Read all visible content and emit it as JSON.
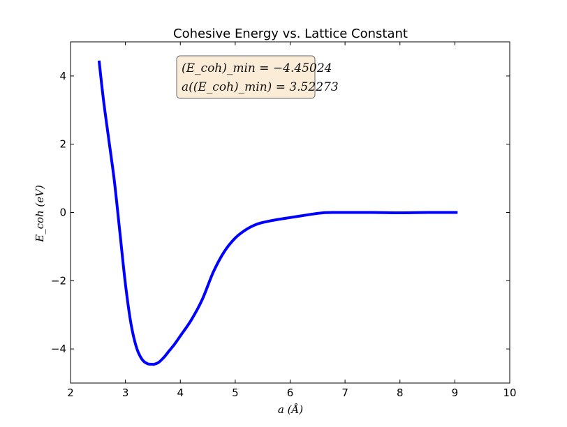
{
  "chart_data": {
    "type": "line",
    "title": "Cohesive Energy vs. Lattice Constant",
    "xlabel": "a (Å)",
    "ylabel": "E_coh (eV)",
    "xlim": [
      2,
      10
    ],
    "ylim": [
      -5,
      5
    ],
    "xticks": [
      "2",
      "3",
      "4",
      "5",
      "6",
      "7",
      "8",
      "9",
      "10"
    ],
    "yticks": [
      "−4",
      "−2",
      "0",
      "2",
      "4"
    ],
    "grid": false,
    "series": [
      {
        "color": "#0000ff",
        "x": [
          2.52,
          2.6,
          2.7,
          2.8,
          2.9,
          3.0,
          3.1,
          3.2,
          3.3,
          3.4,
          3.5,
          3.52,
          3.6,
          3.7,
          3.8,
          3.9,
          4.0,
          4.2,
          4.4,
          4.6,
          4.8,
          5.0,
          5.2,
          5.4,
          5.6,
          5.8,
          6.0,
          6.2,
          6.4,
          6.6,
          6.8,
          7.0,
          7.5,
          8.0,
          8.5,
          9.05
        ],
        "y": [
          4.45,
          3.3,
          2.1,
          0.9,
          -0.6,
          -2.1,
          -3.25,
          -3.95,
          -4.3,
          -4.43,
          -4.45,
          -4.45,
          -4.4,
          -4.25,
          -4.05,
          -3.85,
          -3.62,
          -3.15,
          -2.55,
          -1.75,
          -1.15,
          -0.75,
          -0.5,
          -0.34,
          -0.26,
          -0.2,
          -0.15,
          -0.1,
          -0.05,
          -0.01,
          0.0,
          0.0,
          0.0,
          -0.01,
          0.0,
          0.0
        ]
      }
    ],
    "annotation": {
      "line1": "(E_coh)_min = −4.45024",
      "line2": "a((E_coh)_min) = 3.52273",
      "box_fill": "#fbecd8",
      "box_stroke": "#666666"
    },
    "colors": {
      "line": "#0000ff",
      "axis": "#000000",
      "background": "#ffffff"
    }
  }
}
